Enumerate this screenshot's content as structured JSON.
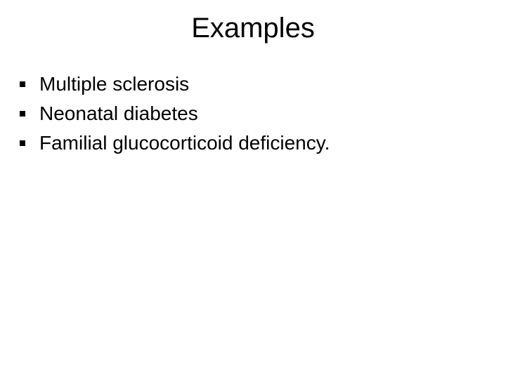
{
  "slide": {
    "title": "Examples",
    "bullets": [
      "Multiple sclerosis",
      "Neonatal diabetes",
      "Familial glucocorticoid deficiency."
    ],
    "styling": {
      "background_color": "#ffffff",
      "text_color": "#000000",
      "title_fontsize": 40,
      "bullet_fontsize": 28,
      "font_family": "Arial",
      "bullet_marker": "square",
      "bullet_color": "#000000"
    }
  }
}
